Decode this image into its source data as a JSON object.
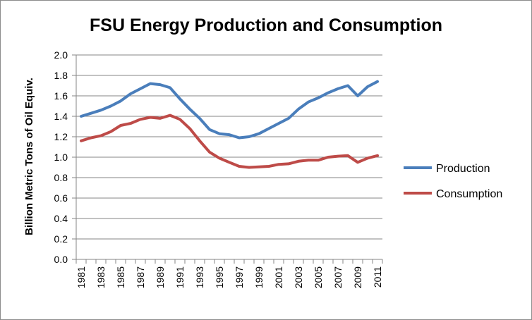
{
  "chart_data": {
    "type": "line",
    "title": "FSU Energy Production and Consumption",
    "xlabel": "",
    "ylabel": "Billion Metric Tons of Oil Equiv.",
    "ylim": [
      0,
      2.0
    ],
    "yticks": [
      "0.0",
      "0.2",
      "0.4",
      "0.6",
      "0.8",
      "1.0",
      "1.2",
      "1.4",
      "1.6",
      "1.8",
      "2.0"
    ],
    "grid": true,
    "legend_position": "right",
    "x": [
      1981,
      1982,
      1983,
      1984,
      1985,
      1986,
      1987,
      1988,
      1989,
      1990,
      1991,
      1992,
      1993,
      1994,
      1995,
      1996,
      1997,
      1998,
      1999,
      2000,
      2001,
      2002,
      2003,
      2004,
      2005,
      2006,
      2007,
      2008,
      2009,
      2010,
      2011
    ],
    "xticks": [
      "1981",
      "1983",
      "1985",
      "1987",
      "1989",
      "1991",
      "1993",
      "1995",
      "1997",
      "1999",
      "2001",
      "2003",
      "2005",
      "2007",
      "2009",
      "2011"
    ],
    "series": [
      {
        "name": "Production",
        "color": "#4a7ebb",
        "values": [
          1.4,
          1.43,
          1.46,
          1.5,
          1.55,
          1.62,
          1.67,
          1.72,
          1.71,
          1.68,
          1.57,
          1.47,
          1.38,
          1.27,
          1.23,
          1.22,
          1.19,
          1.2,
          1.23,
          1.28,
          1.33,
          1.38,
          1.47,
          1.54,
          1.58,
          1.63,
          1.67,
          1.7,
          1.6,
          1.69,
          1.74
        ]
      },
      {
        "name": "Consumption",
        "color": "#be4b48",
        "values": [
          1.16,
          1.19,
          1.21,
          1.25,
          1.31,
          1.33,
          1.37,
          1.39,
          1.38,
          1.41,
          1.37,
          1.28,
          1.16,
          1.05,
          0.99,
          0.95,
          0.91,
          0.9,
          0.905,
          0.91,
          0.93,
          0.935,
          0.96,
          0.97,
          0.97,
          1.0,
          1.01,
          1.015,
          0.95,
          0.99,
          1.015
        ]
      }
    ]
  }
}
